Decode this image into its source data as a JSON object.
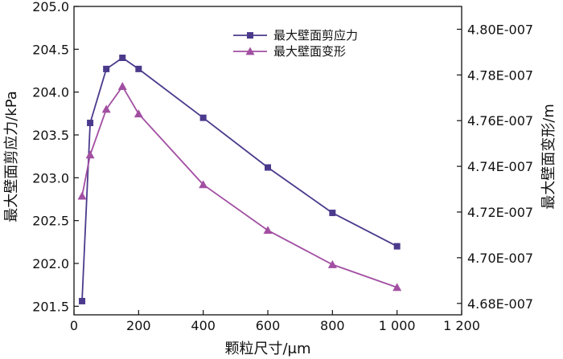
{
  "chart_data": {
    "type": "line",
    "title": "",
    "xlabel": "颗粒尺寸/μm",
    "ylabel_left": "最大壁面剪应力/kPa",
    "ylabel_right": "最大壁面变形/m",
    "xlim": [
      0,
      1200
    ],
    "x_ticks": [
      0,
      200,
      400,
      600,
      800,
      1000,
      1200
    ],
    "x_tick_labels": [
      "0",
      "200",
      "400",
      "600",
      "800",
      "1 000",
      "1 200"
    ],
    "ylim_left": [
      201.4,
      205.0
    ],
    "y_ticks_left": [
      201.5,
      202.0,
      202.5,
      203.0,
      203.5,
      204.0,
      204.5,
      205.0
    ],
    "y_tick_labels_left": [
      "201.5",
      "202.0",
      "202.5",
      "203.0",
      "203.5",
      "204.0",
      "204.5",
      "205.0"
    ],
    "ylim_right": [
      4.675e-07,
      4.81e-07
    ],
    "y_ticks_right": [
      4.68e-07,
      4.7e-07,
      4.72e-07,
      4.74e-07,
      4.76e-07,
      4.78e-07,
      4.8e-07
    ],
    "y_tick_labels_right": [
      "4.68E-007",
      "4.70E-007",
      "4.72E-007",
      "4.74E-007",
      "4.76E-007",
      "4.78E-007",
      "4.80E-007"
    ],
    "legend_position": "top-right",
    "series": [
      {
        "name": "最大壁面剪应力",
        "axis": "left",
        "marker": "square",
        "color": "#4b3a8c",
        "x": [
          25,
          50,
          100,
          150,
          200,
          400,
          600,
          800,
          1000
        ],
        "values": [
          201.56,
          203.64,
          204.27,
          204.4,
          204.27,
          203.7,
          203.12,
          202.59,
          202.2
        ]
      },
      {
        "name": "最大壁面变形",
        "axis": "right",
        "marker": "triangle",
        "color": "#a24fa2",
        "x": [
          25,
          50,
          100,
          150,
          200,
          400,
          600,
          800,
          1000
        ],
        "values": [
          4.727e-07,
          4.745e-07,
          4.765e-07,
          4.775e-07,
          4.763e-07,
          4.732e-07,
          4.712e-07,
          4.697e-07,
          4.687e-07
        ]
      }
    ]
  }
}
